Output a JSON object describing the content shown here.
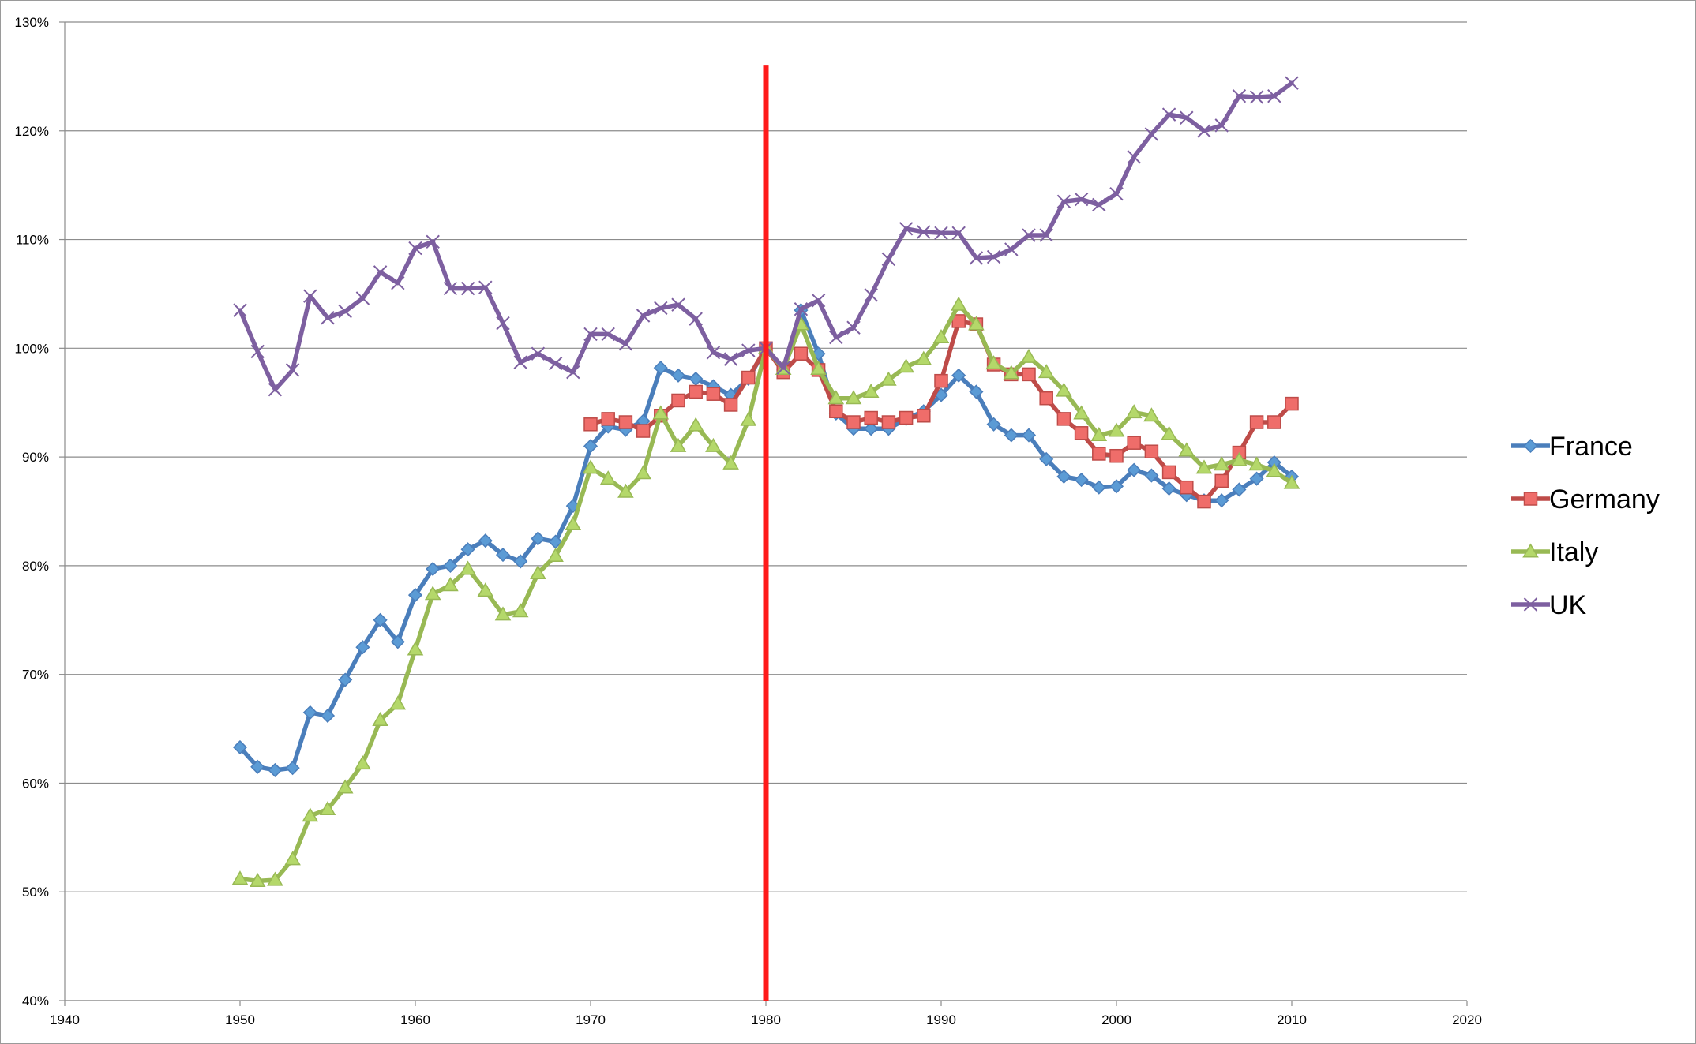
{
  "chart_data": {
    "type": "line",
    "title": "",
    "xlabel": "",
    "ylabel": "",
    "xlim": [
      1940,
      2020
    ],
    "ylim": [
      40,
      130
    ],
    "x_ticks": [
      "1940",
      "1950",
      "1960",
      "1970",
      "1980",
      "1990",
      "2000",
      "2010",
      "2020"
    ],
    "y_ticks": [
      "40%",
      "50%",
      "60%",
      "70%",
      "80%",
      "90%",
      "100%",
      "110%",
      "120%",
      "130%"
    ],
    "grid": "horizontal",
    "legend_position": "right",
    "reference_line": {
      "x": 1980,
      "from": 40,
      "to": 126,
      "color": "#ff1a1a"
    },
    "series": [
      {
        "name": "France",
        "color": "#4a7ebb",
        "fill": "#5b9bd5",
        "marker": "diamond",
        "x": [
          1950,
          1951,
          1952,
          1953,
          1954,
          1955,
          1956,
          1957,
          1958,
          1959,
          1960,
          1961,
          1962,
          1963,
          1964,
          1965,
          1966,
          1967,
          1968,
          1969,
          1970,
          1971,
          1972,
          1973,
          1974,
          1975,
          1976,
          1977,
          1978,
          1979,
          1980,
          1981,
          1982,
          1983,
          1984,
          1985,
          1986,
          1987,
          1988,
          1989,
          1990,
          1991,
          1992,
          1993,
          1994,
          1995,
          1996,
          1997,
          1998,
          1999,
          2000,
          2001,
          2002,
          2003,
          2004,
          2005,
          2006,
          2007,
          2008,
          2009,
          2010
        ],
        "values": [
          63.3,
          61.5,
          61.2,
          61.4,
          66.5,
          66.2,
          69.5,
          72.5,
          75.0,
          73.0,
          77.3,
          79.7,
          80.0,
          81.5,
          82.3,
          81.0,
          80.4,
          82.5,
          82.2,
          85.5,
          91.0,
          92.8,
          92.5,
          93.3,
          98.2,
          97.5,
          97.2,
          96.5,
          95.7,
          97.2,
          100.0,
          98.0,
          103.5,
          99.5,
          94.0,
          92.6,
          92.6,
          92.6,
          93.5,
          94.2,
          95.7,
          97.5,
          96.0,
          93.0,
          92.0,
          92.0,
          89.8,
          88.2,
          87.9,
          87.2,
          87.3,
          88.8,
          88.3,
          87.1,
          86.5,
          86.0,
          86.0,
          87.0,
          88.0,
          89.5,
          88.2
        ]
      },
      {
        "name": "Germany",
        "color": "#be4b48",
        "fill": "#ef6d6a",
        "marker": "square",
        "x": [
          1970,
          1971,
          1972,
          1973,
          1974,
          1975,
          1976,
          1977,
          1978,
          1979,
          1980,
          1981,
          1982,
          1983,
          1984,
          1985,
          1986,
          1987,
          1988,
          1989,
          1990,
          1991,
          1992,
          1993,
          1994,
          1995,
          1996,
          1997,
          1998,
          1999,
          2000,
          2001,
          2002,
          2003,
          2004,
          2005,
          2006,
          2007,
          2008,
          2009,
          2010
        ],
        "values": [
          93.0,
          93.5,
          93.2,
          92.4,
          93.8,
          95.2,
          96.0,
          95.8,
          94.8,
          97.3,
          100.0,
          97.8,
          99.5,
          98.0,
          94.2,
          93.2,
          93.6,
          93.2,
          93.6,
          93.8,
          97.0,
          102.5,
          102.2,
          98.5,
          97.6,
          97.6,
          95.4,
          93.5,
          92.2,
          90.3,
          90.1,
          91.3,
          90.5,
          88.6,
          87.2,
          85.9,
          87.8,
          90.4,
          93.2,
          93.2,
          94.9
        ]
      },
      {
        "name": "Italy",
        "color": "#98b954",
        "fill": "#b4d86a",
        "marker": "triangle",
        "x": [
          1950,
          1951,
          1952,
          1953,
          1954,
          1955,
          1956,
          1957,
          1958,
          1959,
          1960,
          1961,
          1962,
          1963,
          1964,
          1965,
          1966,
          1967,
          1968,
          1969,
          1970,
          1971,
          1972,
          1973,
          1974,
          1975,
          1976,
          1977,
          1978,
          1979,
          1980,
          1981,
          1982,
          1983,
          1984,
          1985,
          1986,
          1987,
          1988,
          1989,
          1990,
          1991,
          1992,
          1993,
          1994,
          1995,
          1996,
          1997,
          1998,
          1999,
          2000,
          2001,
          2002,
          2003,
          2004,
          2005,
          2006,
          2007,
          2008,
          2009,
          2010
        ],
        "values": [
          51.2,
          51.0,
          51.1,
          53.0,
          57.0,
          57.6,
          59.6,
          61.8,
          65.8,
          67.3,
          72.3,
          77.4,
          78.2,
          79.7,
          77.7,
          75.5,
          75.8,
          79.3,
          80.9,
          83.8,
          89.0,
          88.0,
          86.8,
          88.5,
          94.0,
          91.0,
          92.9,
          91.0,
          89.4,
          93.4,
          100.0,
          98.1,
          102.2,
          98.1,
          95.4,
          95.4,
          96.0,
          97.1,
          98.3,
          99.0,
          101.0,
          104.0,
          102.2,
          98.6,
          97.7,
          99.2,
          97.8,
          96.1,
          94.0,
          92.0,
          92.4,
          94.1,
          93.8,
          92.1,
          90.6,
          89.0,
          89.3,
          89.7,
          89.3,
          88.7,
          87.6
        ]
      },
      {
        "name": "UK",
        "color": "#7d5fa0",
        "fill": "#7d5fa0",
        "marker": "x",
        "x": [
          1950,
          1951,
          1952,
          1953,
          1954,
          1955,
          1956,
          1957,
          1958,
          1959,
          1960,
          1961,
          1962,
          1963,
          1964,
          1965,
          1966,
          1967,
          1968,
          1969,
          1970,
          1971,
          1972,
          1973,
          1974,
          1975,
          1976,
          1977,
          1978,
          1979,
          1980,
          1981,
          1982,
          1983,
          1984,
          1985,
          1986,
          1987,
          1988,
          1989,
          1990,
          1991,
          1992,
          1993,
          1994,
          1995,
          1996,
          1997,
          1998,
          1999,
          2000,
          2001,
          2002,
          2003,
          2004,
          2005,
          2006,
          2007,
          2008,
          2009,
          2010
        ],
        "values": [
          103.5,
          99.7,
          96.2,
          98.0,
          104.8,
          102.8,
          103.4,
          104.6,
          107.0,
          106.0,
          109.2,
          109.8,
          105.5,
          105.5,
          105.6,
          102.3,
          98.7,
          99.5,
          98.6,
          97.8,
          101.3,
          101.3,
          100.4,
          103.0,
          103.7,
          104.0,
          102.7,
          99.6,
          99.0,
          99.8,
          100.0,
          98.2,
          103.6,
          104.4,
          101.0,
          101.9,
          104.9,
          108.2,
          111.0,
          110.7,
          110.6,
          110.6,
          108.3,
          108.4,
          109.1,
          110.4,
          110.4,
          113.5,
          113.7,
          113.2,
          114.2,
          117.6,
          119.7,
          121.5,
          121.2,
          120.0,
          120.5,
          123.2,
          123.1,
          123.2,
          124.4
        ]
      }
    ]
  }
}
